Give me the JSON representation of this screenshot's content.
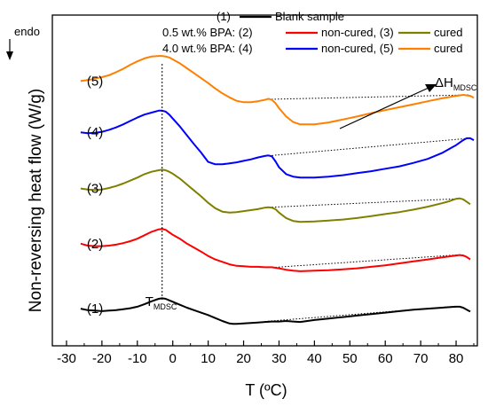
{
  "chart_data": {
    "type": "line",
    "xlabel": "T (ºC)",
    "ylabel": "Non-reversing heat flow (W/g)",
    "endo_label": "endo",
    "xlim": [
      -34,
      86
    ],
    "xticks": [
      -30,
      -20,
      -10,
      0,
      10,
      20,
      30,
      40,
      50,
      60,
      70,
      80
    ],
    "yticks_visible": false,
    "grid": false,
    "legend": {
      "position": "top",
      "rows": [
        {
          "prefix": "(1)",
          "items": [
            {
              "series": 1,
              "label": "Blank sample"
            }
          ]
        },
        {
          "prefix": "0.5 wt.% BPA: (2)",
          "items": [
            {
              "series": 2,
              "label": "non-cured, (3)"
            },
            {
              "series": 3,
              "label": "cured"
            }
          ]
        },
        {
          "prefix": "4.0 wt.% BPA: (4)",
          "items": [
            {
              "series": 4,
              "label": "non-cured, (5)"
            },
            {
              "series": 5,
              "label": "cured"
            }
          ]
        }
      ]
    },
    "series": [
      {
        "id": 1,
        "name": "(1)",
        "color": "#000000",
        "x": [
          -26,
          -24,
          -22,
          -20,
          -18,
          -16,
          -14,
          -12,
          -10,
          -8,
          -6,
          -4,
          -3,
          -2,
          -1,
          0,
          2,
          4,
          6,
          8,
          10,
          12,
          14,
          16,
          17,
          18,
          20,
          22,
          24,
          26,
          28,
          30,
          32,
          34,
          36,
          38,
          40,
          44,
          48,
          52,
          56,
          60,
          64,
          68,
          72,
          76,
          78,
          80,
          81,
          82,
          83,
          84
        ],
        "y": [
          -0.02,
          -0.05,
          -0.06,
          -0.07,
          -0.06,
          -0.05,
          -0.03,
          -0.01,
          0.02,
          0.07,
          0.13,
          0.18,
          0.19,
          0.18,
          0.15,
          0.12,
          0.06,
          0.0,
          -0.05,
          -0.1,
          -0.15,
          -0.21,
          -0.27,
          -0.32,
          -0.33,
          -0.33,
          -0.32,
          -0.31,
          -0.3,
          -0.29,
          -0.28,
          -0.28,
          -0.27,
          -0.28,
          -0.29,
          -0.27,
          -0.25,
          -0.22,
          -0.19,
          -0.16,
          -0.13,
          -0.1,
          -0.07,
          -0.04,
          -0.02,
          0.0,
          0.01,
          0.02,
          0.02,
          0.0,
          -0.04,
          -0.08
        ],
        "baseline": {
          "x": [
            26,
            80
          ],
          "y": [
            -0.28,
            0.03
          ]
        }
      },
      {
        "id": 2,
        "name": "(2)",
        "color": "#ff0000",
        "x": [
          -26,
          -24,
          -22,
          -20,
          -18,
          -16,
          -14,
          -12,
          -10,
          -8,
          -6,
          -4,
          -3,
          -2,
          -1,
          0,
          2,
          4,
          6,
          8,
          10,
          12,
          14,
          16,
          18,
          20,
          22,
          24,
          26,
          28,
          29,
          30,
          32,
          34,
          36,
          40,
          44,
          48,
          52,
          56,
          60,
          64,
          68,
          72,
          76,
          78,
          80,
          81,
          82,
          83,
          84
        ],
        "y": [
          1.3,
          1.26,
          1.25,
          1.25,
          1.26,
          1.28,
          1.31,
          1.35,
          1.4,
          1.47,
          1.54,
          1.59,
          1.6,
          1.58,
          1.53,
          1.48,
          1.4,
          1.3,
          1.22,
          1.14,
          1.05,
          0.98,
          0.93,
          0.88,
          0.85,
          0.84,
          0.83,
          0.83,
          0.82,
          0.82,
          0.81,
          0.8,
          0.77,
          0.75,
          0.74,
          0.75,
          0.76,
          0.78,
          0.8,
          0.83,
          0.86,
          0.9,
          0.94,
          0.98,
          1.02,
          1.04,
          1.06,
          1.07,
          1.06,
          1.03,
          0.98
        ],
        "baseline": {
          "x": [
            29,
            80
          ],
          "y": [
            0.82,
            1.07
          ]
        }
      },
      {
        "id": 3,
        "name": "(3)",
        "color": "#808000",
        "x": [
          -26,
          -24,
          -22,
          -20,
          -18,
          -16,
          -14,
          -12,
          -10,
          -8,
          -6,
          -4,
          -3,
          -2,
          -1,
          0,
          2,
          4,
          6,
          8,
          10,
          12,
          14,
          16,
          18,
          20,
          22,
          24,
          26,
          27,
          28,
          29,
          30,
          32,
          34,
          36,
          40,
          44,
          48,
          52,
          56,
          60,
          64,
          68,
          72,
          76,
          78,
          80,
          81,
          82,
          83,
          84
        ],
        "y": [
          2.42,
          2.4,
          2.39,
          2.4,
          2.43,
          2.47,
          2.52,
          2.58,
          2.64,
          2.71,
          2.76,
          2.79,
          2.8,
          2.79,
          2.76,
          2.72,
          2.62,
          2.5,
          2.38,
          2.26,
          2.13,
          2.02,
          1.95,
          1.93,
          1.94,
          1.96,
          1.98,
          2.0,
          2.03,
          2.04,
          2.03,
          2.0,
          1.93,
          1.82,
          1.76,
          1.74,
          1.75,
          1.77,
          1.79,
          1.82,
          1.86,
          1.9,
          1.94,
          1.99,
          2.05,
          2.12,
          2.16,
          2.21,
          2.22,
          2.2,
          2.15,
          2.1
        ],
        "baseline": {
          "x": [
            28,
            80
          ],
          "y": [
            2.04,
            2.21
          ]
        }
      },
      {
        "id": 4,
        "name": "(4)",
        "color": "#0000ff",
        "x": [
          -26,
          -24,
          -22,
          -20,
          -18,
          -16,
          -14,
          -12,
          -10,
          -8,
          -6,
          -4,
          -3,
          -2,
          -1,
          0,
          2,
          4,
          6,
          8,
          10,
          12,
          14,
          16,
          18,
          20,
          22,
          24,
          26,
          27,
          28,
          29,
          30,
          32,
          34,
          36,
          40,
          44,
          48,
          52,
          56,
          60,
          64,
          68,
          72,
          76,
          78,
          80,
          82,
          83,
          84,
          85
        ],
        "y": [
          3.56,
          3.54,
          3.55,
          3.57,
          3.61,
          3.66,
          3.72,
          3.79,
          3.86,
          3.92,
          3.96,
          4.0,
          4.0,
          3.98,
          3.92,
          3.84,
          3.68,
          3.5,
          3.32,
          3.15,
          2.96,
          2.91,
          2.91,
          2.93,
          2.95,
          2.98,
          3.01,
          3.05,
          3.08,
          3.09,
          3.07,
          2.97,
          2.85,
          2.71,
          2.66,
          2.64,
          2.64,
          2.66,
          2.69,
          2.73,
          2.77,
          2.82,
          2.87,
          2.94,
          3.02,
          3.14,
          3.22,
          3.3,
          3.4,
          3.44,
          3.44,
          3.4
        ],
        "baseline": {
          "x": [
            28,
            84
          ],
          "y": [
            3.09,
            3.44
          ]
        }
      },
      {
        "id": 5,
        "name": "(5)",
        "color": "#ff8000",
        "x": [
          -26,
          -24,
          -22,
          -20,
          -18,
          -16,
          -14,
          -12,
          -10,
          -8,
          -6,
          -4,
          -3,
          -2,
          -1,
          0,
          2,
          4,
          6,
          8,
          10,
          12,
          14,
          16,
          18,
          20,
          22,
          24,
          26,
          27,
          28,
          29,
          30,
          32,
          34,
          36,
          40,
          44,
          48,
          52,
          56,
          60,
          64,
          68,
          72,
          76,
          80,
          82,
          84,
          85
        ],
        "y": [
          4.6,
          4.62,
          4.65,
          4.68,
          4.72,
          4.78,
          4.85,
          4.93,
          5.0,
          5.06,
          5.1,
          5.11,
          5.11,
          5.1,
          5.08,
          5.04,
          4.96,
          4.86,
          4.76,
          4.66,
          4.56,
          4.45,
          4.35,
          4.27,
          4.2,
          4.17,
          4.17,
          4.19,
          4.22,
          4.24,
          4.22,
          4.15,
          4.05,
          3.88,
          3.77,
          3.72,
          3.72,
          3.76,
          3.82,
          3.88,
          3.95,
          4.01,
          4.07,
          4.13,
          4.19,
          4.25,
          4.3,
          4.32,
          4.3,
          4.26
        ],
        "baseline": {
          "x": [
            27,
            84
          ],
          "y": [
            4.23,
            4.32
          ]
        }
      }
    ],
    "annotations": {
      "t_mdsc": {
        "x": -3,
        "label_main": "T",
        "label_sub": "MDSC"
      },
      "delta_h": {
        "label_main": "ΔH",
        "label_sub": "MDSC"
      }
    }
  }
}
